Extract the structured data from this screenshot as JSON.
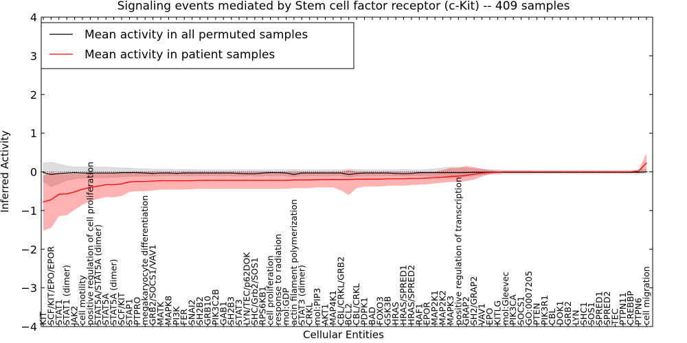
{
  "chart_data": {
    "type": "line",
    "title": "Signaling events mediated by Stem cell factor receptor (c-Kit) -- 409 samples",
    "xlabel": "Cellular Entities",
    "ylabel": "Inferred Activity",
    "ylim": [
      -4,
      4
    ],
    "yticks": [
      -4,
      -3,
      -2,
      -1,
      0,
      1,
      2,
      3,
      4
    ],
    "grid": false,
    "legend_position": "top-left",
    "categories": [
      "KIT",
      "SCF/KIT/EPO/EPOR",
      "STAT1",
      "STAT1 (dimer)",
      "JAK2",
      "cell motility",
      "positive regulation of cell proliferation",
      "STAT5A/STAT5A (dimer)",
      "STAT5A",
      "STAT5A (dimer)",
      "SCF/KIT",
      "STAP1",
      "PTPRO",
      "megakaryocyte differentiation",
      "GRB2/SOCS1/VAV1",
      "MATK",
      "MAPK8",
      "PI3K",
      "FER",
      "SNAI2",
      "SH2B2",
      "GRB10",
      "PIK3C2B",
      "GAB1",
      "SH2B3",
      "STAT3",
      "LYN/TEC/p62DOK",
      "SHC/Grb2/SOS1",
      "RPS6KB1",
      "cell proliferation",
      "response to radiation",
      "mol:GDP",
      "actin filament polymerization",
      "STAT3 (dimer)",
      "CRKL",
      "mol:PIP3",
      "AKT1",
      "MAP4K1",
      "CBL/CRKL/GRB2",
      "BCL2",
      "CBL/CRKL",
      "PDPK1",
      "BAD",
      "FOXO3",
      "GSK3B",
      "HRAS",
      "HRAS/SPRED1",
      "HRAS/SPRED2",
      "RAF1",
      "EPOR",
      "MAP2K1",
      "MAP2K2",
      "MAPK3",
      "positive regulation of transcription",
      "GRAP2",
      "SH2/GRAP2",
      "VAV1",
      "EPO",
      "KITLG",
      "mol:Gleevec",
      "PIK3CA",
      "SOCS1",
      "GO:0007205",
      "PTEN",
      "PIK3R1",
      "CBL",
      "DOK1",
      "GRB2",
      "LYN",
      "SHC1",
      "SOS1",
      "SPRED1",
      "SPRED2",
      "TEC",
      "PTPN11",
      "CREBBP",
      "PTPN6",
      "cell migration"
    ],
    "series": [
      {
        "name": "Mean activity in all permuted samples",
        "color": "#000000",
        "values": [
          -0.02,
          -0.07,
          -0.04,
          -0.03,
          -0.02,
          -0.03,
          -0.03,
          -0.03,
          -0.03,
          -0.03,
          -0.02,
          -0.02,
          -0.02,
          -0.03,
          -0.04,
          -0.03,
          -0.03,
          -0.04,
          -0.03,
          -0.03,
          -0.03,
          -0.03,
          -0.03,
          -0.03,
          -0.03,
          -0.04,
          -0.05,
          -0.05,
          -0.03,
          -0.02,
          -0.02,
          -0.03,
          -0.07,
          -0.03,
          -0.03,
          -0.03,
          -0.03,
          -0.03,
          -0.03,
          -0.07,
          -0.04,
          -0.03,
          -0.03,
          -0.03,
          -0.03,
          -0.04,
          -0.05,
          -0.04,
          -0.02,
          -0.02,
          -0.02,
          -0.02,
          -0.02,
          -0.02,
          -0.02,
          -0.01,
          -0.01,
          -0.01,
          -0.01,
          -0.01,
          -0.01,
          -0.01,
          -0.01,
          -0.01,
          -0.01,
          -0.01,
          -0.01,
          -0.01,
          -0.01,
          -0.01,
          -0.01,
          -0.01,
          -0.01,
          -0.01,
          -0.01,
          -0.01,
          -0.01,
          0.0
        ],
        "band_upper": [
          0.22,
          0.25,
          0.2,
          0.15,
          0.12,
          0.13,
          0.12,
          0.12,
          0.12,
          0.11,
          0.1,
          0.09,
          0.08,
          0.08,
          0.06,
          0.07,
          0.07,
          0.06,
          0.06,
          0.06,
          0.05,
          0.05,
          0.05,
          0.05,
          0.05,
          0.05,
          0.05,
          0.05,
          0.05,
          0.05,
          0.05,
          0.05,
          0.06,
          0.05,
          0.05,
          0.05,
          0.05,
          0.05,
          0.05,
          0.07,
          0.06,
          0.05,
          0.05,
          0.05,
          0.05,
          0.05,
          0.06,
          0.05,
          0.05,
          0.06,
          0.08,
          0.1,
          0.12,
          0.12,
          0.1,
          0.08,
          0.06,
          0.05,
          0.05,
          0.04,
          0.04,
          0.04,
          0.04,
          0.03,
          0.03,
          0.03,
          0.03,
          0.03,
          0.03,
          0.03,
          0.03,
          0.03,
          0.03,
          0.03,
          0.03,
          0.03,
          0.05,
          0.07
        ],
        "band_lower": [
          -0.25,
          -0.38,
          -0.3,
          -0.22,
          -0.18,
          -0.16,
          -0.15,
          -0.15,
          -0.15,
          -0.14,
          -0.13,
          -0.12,
          -0.11,
          -0.11,
          -0.11,
          -0.1,
          -0.1,
          -0.1,
          -0.1,
          -0.1,
          -0.1,
          -0.1,
          -0.1,
          -0.1,
          -0.1,
          -0.1,
          -0.1,
          -0.1,
          -0.1,
          -0.1,
          -0.1,
          -0.1,
          -0.12,
          -0.1,
          -0.1,
          -0.1,
          -0.1,
          -0.1,
          -0.1,
          -0.14,
          -0.11,
          -0.1,
          -0.1,
          -0.1,
          -0.1,
          -0.1,
          -0.11,
          -0.1,
          -0.1,
          -0.1,
          -0.12,
          -0.14,
          -0.16,
          -0.14,
          -0.12,
          -0.1,
          -0.08,
          -0.06,
          -0.06,
          -0.05,
          -0.05,
          -0.05,
          -0.05,
          -0.04,
          -0.04,
          -0.04,
          -0.04,
          -0.04,
          -0.04,
          -0.04,
          -0.04,
          -0.04,
          -0.04,
          -0.04,
          -0.04,
          -0.04,
          -0.05,
          -0.03
        ]
      },
      {
        "name": "Mean activity in patient samples",
        "color": "#ff0000",
        "values": [
          -0.78,
          -0.72,
          -0.58,
          -0.57,
          -0.52,
          -0.45,
          -0.4,
          -0.37,
          -0.33,
          -0.33,
          -0.31,
          -0.26,
          -0.25,
          -0.25,
          -0.24,
          -0.23,
          -0.23,
          -0.23,
          -0.23,
          -0.23,
          -0.22,
          -0.22,
          -0.22,
          -0.22,
          -0.22,
          -0.22,
          -0.22,
          -0.22,
          -0.22,
          -0.22,
          -0.22,
          -0.22,
          -0.21,
          -0.21,
          -0.21,
          -0.2,
          -0.2,
          -0.2,
          -0.2,
          -0.2,
          -0.19,
          -0.19,
          -0.19,
          -0.19,
          -0.18,
          -0.18,
          -0.18,
          -0.17,
          -0.17,
          -0.16,
          -0.15,
          -0.14,
          -0.12,
          -0.11,
          -0.09,
          -0.06,
          -0.03,
          -0.02,
          -0.01,
          0.0,
          0.0,
          0.0,
          0.0,
          0.0,
          0.0,
          0.0,
          0.0,
          0.0,
          0.0,
          0.0,
          0.0,
          0.0,
          0.0,
          0.0,
          0.0,
          0.0,
          0.02,
          0.23
        ],
        "band_upper": [
          -0.1,
          0.0,
          -0.05,
          -0.05,
          -0.05,
          -0.05,
          -0.03,
          -0.03,
          -0.02,
          -0.02,
          -0.02,
          0.0,
          0.0,
          0.0,
          0.0,
          0.0,
          0.0,
          0.0,
          0.0,
          0.0,
          0.0,
          0.0,
          0.0,
          0.0,
          0.0,
          0.0,
          0.0,
          0.0,
          0.0,
          0.0,
          0.0,
          0.0,
          0.0,
          0.0,
          0.0,
          0.0,
          0.0,
          0.0,
          0.0,
          0.05,
          0.0,
          0.0,
          0.0,
          0.0,
          0.0,
          0.0,
          0.0,
          0.0,
          0.0,
          0.0,
          0.0,
          0.05,
          0.1,
          0.1,
          0.15,
          0.12,
          0.08,
          0.05,
          0.03,
          0.02,
          0.02,
          0.02,
          0.02,
          0.02,
          0.02,
          0.02,
          0.02,
          0.02,
          0.02,
          0.02,
          0.02,
          0.02,
          0.02,
          0.02,
          0.02,
          0.02,
          0.05,
          0.48
        ],
        "band_lower": [
          -1.52,
          -1.45,
          -1.15,
          -1.12,
          -0.98,
          -0.85,
          -0.75,
          -0.7,
          -0.65,
          -0.66,
          -0.62,
          -0.52,
          -0.5,
          -0.5,
          -0.48,
          -0.46,
          -0.46,
          -0.46,
          -0.46,
          -0.45,
          -0.44,
          -0.44,
          -0.44,
          -0.44,
          -0.44,
          -0.44,
          -0.44,
          -0.44,
          -0.44,
          -0.44,
          -0.44,
          -0.44,
          -0.42,
          -0.42,
          -0.42,
          -0.4,
          -0.4,
          -0.4,
          -0.48,
          -0.6,
          -0.42,
          -0.38,
          -0.38,
          -0.38,
          -0.36,
          -0.36,
          -0.36,
          -0.34,
          -0.33,
          -0.32,
          -0.3,
          -0.28,
          -0.26,
          -0.26,
          -0.24,
          -0.2,
          -0.12,
          -0.06,
          -0.04,
          -0.02,
          -0.02,
          -0.02,
          -0.02,
          -0.02,
          -0.02,
          -0.02,
          -0.02,
          -0.02,
          -0.02,
          -0.02,
          -0.02,
          -0.02,
          -0.02,
          -0.02,
          -0.02,
          -0.02,
          -0.02,
          0.0
        ]
      }
    ]
  }
}
